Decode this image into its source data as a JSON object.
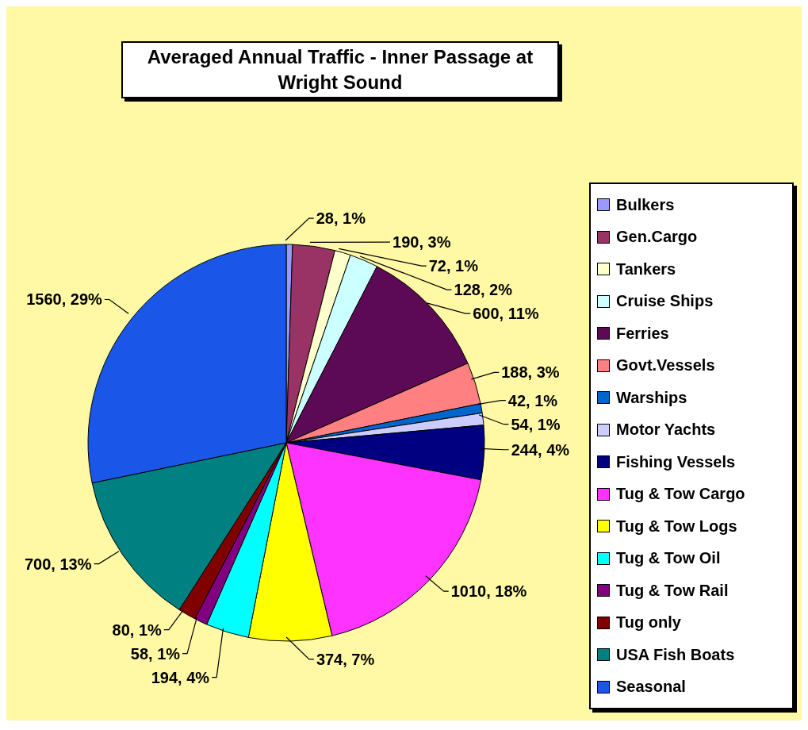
{
  "chart_data": {
    "type": "pie",
    "title": "Averaged Annual Traffic - Inner Passage at Wright Sound",
    "categories": [
      "Bulkers",
      "Gen.Cargo",
      "Tankers",
      "Cruise Ships",
      "Ferries",
      "Govt.Vessels",
      "Warships",
      "Motor Yachts",
      "Fishing Vessels",
      "Tug & Tow Cargo",
      "Tug & Tow Logs",
      "Tug & Tow Oil",
      "Tug & Tow Rail",
      "Tug only",
      "USA Fish Boats",
      "Seasonal"
    ],
    "values": [
      28,
      190,
      72,
      128,
      600,
      188,
      42,
      54,
      244,
      1010,
      374,
      194,
      58,
      80,
      700,
      1560
    ],
    "value_labels": [
      "28, 1%",
      "190, 3%",
      "72, 1%",
      "128, 2%",
      "600, 11%",
      "188, 3%",
      "42, 1%",
      "54, 1%",
      "244, 4%",
      "1010, 18%",
      "374, 7%",
      "194, 4%",
      "58, 1%",
      "80, 1%",
      "700, 13%",
      "1560, 29%"
    ],
    "colors": [
      "#9999ff",
      "#993366",
      "#ffffcc",
      "#ccffff",
      "#5c0a55",
      "#ff8080",
      "#0066cc",
      "#ccccff",
      "#000080",
      "#ff33ff",
      "#ffff00",
      "#00ffff",
      "#800080",
      "#800000",
      "#008080",
      "#1a56e8"
    ],
    "legend": "right"
  }
}
